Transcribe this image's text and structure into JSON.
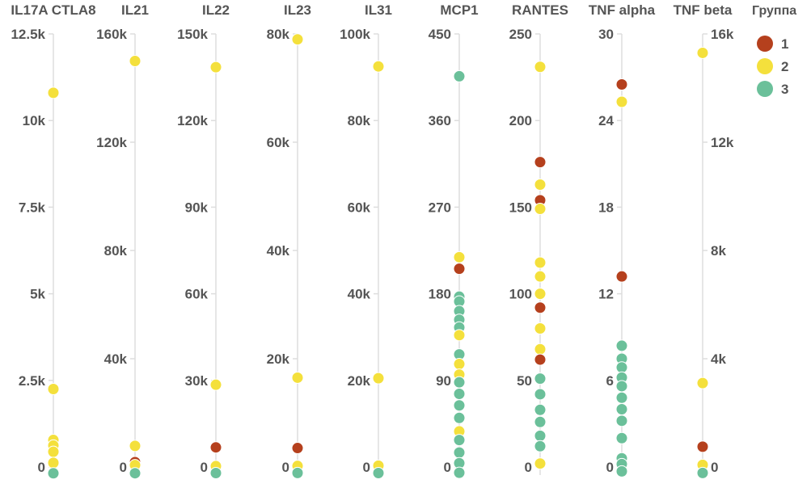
{
  "chart_data": {
    "type": "scatter",
    "subtype": "parallel-strip-plot",
    "title": "",
    "legend": {
      "title": "Группа",
      "placement": "top-right",
      "entries": [
        {
          "label": "1",
          "color": "#B5401D"
        },
        {
          "label": "2",
          "color": "#F4E03C"
        },
        {
          "label": "3",
          "color": "#6BC09A"
        }
      ]
    },
    "grid": false,
    "axes": [
      {
        "name": "IL17A CTLA8",
        "ylim": [
          0,
          12500
        ],
        "ticks": [
          {
            "v": 0,
            "label": "0"
          },
          {
            "v": 2500,
            "label": "2.5k"
          },
          {
            "v": 5000,
            "label": "5k"
          },
          {
            "v": 7500,
            "label": "7.5k"
          },
          {
            "v": 10000,
            "label": "10k"
          },
          {
            "v": 12500,
            "label": "12.5k"
          }
        ],
        "tick_side": "left",
        "points": [
          {
            "group": "2",
            "value": 10800
          },
          {
            "group": "2",
            "value": 2250
          },
          {
            "group": "2",
            "value": 780
          },
          {
            "group": "2",
            "value": 620
          },
          {
            "group": "2",
            "value": 440
          },
          {
            "group": "2",
            "value": 120
          },
          {
            "group": "3",
            "value": -180
          }
        ]
      },
      {
        "name": "IL21",
        "ylim": [
          0,
          160000
        ],
        "ticks": [
          {
            "v": 0,
            "label": "0"
          },
          {
            "v": 40000,
            "label": "40k"
          },
          {
            "v": 80000,
            "label": "80k"
          },
          {
            "v": 120000,
            "label": "120k"
          },
          {
            "v": 160000,
            "label": "160k"
          }
        ],
        "tick_side": "left",
        "points": [
          {
            "group": "2",
            "value": 150000
          },
          {
            "group": "2",
            "value": 7800
          },
          {
            "group": "1",
            "value": 1800
          },
          {
            "group": "2",
            "value": 700
          },
          {
            "group": "3",
            "value": -2300
          }
        ]
      },
      {
        "name": "IL22",
        "ylim": [
          0,
          150000
        ],
        "ticks": [
          {
            "v": 0,
            "label": "0"
          },
          {
            "v": 30000,
            "label": "30k"
          },
          {
            "v": 60000,
            "label": "60k"
          },
          {
            "v": 90000,
            "label": "90k"
          },
          {
            "v": 120000,
            "label": "120k"
          },
          {
            "v": 150000,
            "label": "150k"
          }
        ],
        "tick_side": "left",
        "points": [
          {
            "group": "2",
            "value": 138500
          },
          {
            "group": "2",
            "value": 28500
          },
          {
            "group": "1",
            "value": 6800
          },
          {
            "group": "2",
            "value": 300
          },
          {
            "group": "3",
            "value": -2100
          }
        ]
      },
      {
        "name": "IL23",
        "ylim": [
          0,
          80000
        ],
        "ticks": [
          {
            "v": 0,
            "label": "0"
          },
          {
            "v": 20000,
            "label": "20k"
          },
          {
            "v": 40000,
            "label": "40k"
          },
          {
            "v": 60000,
            "label": "60k"
          },
          {
            "v": 80000,
            "label": "80k"
          }
        ],
        "tick_side": "left",
        "points": [
          {
            "group": "2",
            "value": 79000
          },
          {
            "group": "2",
            "value": 16500
          },
          {
            "group": "1",
            "value": 3500
          },
          {
            "group": "2",
            "value": 200
          },
          {
            "group": "3",
            "value": -1100
          }
        ]
      },
      {
        "name": "IL31",
        "ylim": [
          0,
          100000
        ],
        "ticks": [
          {
            "v": 0,
            "label": "0"
          },
          {
            "v": 20000,
            "label": "20k"
          },
          {
            "v": 40000,
            "label": "40k"
          },
          {
            "v": 60000,
            "label": "60k"
          },
          {
            "v": 80000,
            "label": "80k"
          },
          {
            "v": 100000,
            "label": "100k"
          }
        ],
        "tick_side": "left",
        "points": [
          {
            "group": "2",
            "value": 92500
          },
          {
            "group": "2",
            "value": 20500
          },
          {
            "group": "2",
            "value": 300
          },
          {
            "group": "3",
            "value": -1400
          }
        ]
      },
      {
        "name": "MCP1",
        "ylim": [
          0,
          450
        ],
        "ticks": [
          {
            "v": 0,
            "label": "0"
          },
          {
            "v": 90,
            "label": "90"
          },
          {
            "v": 180,
            "label": "180"
          },
          {
            "v": 270,
            "label": "270"
          },
          {
            "v": 360,
            "label": "360"
          },
          {
            "v": 450,
            "label": "450"
          }
        ],
        "tick_side": "left",
        "points": [
          {
            "group": "3",
            "value": 406
          },
          {
            "group": "2",
            "value": 218
          },
          {
            "group": "1",
            "value": 206
          },
          {
            "group": "3",
            "value": 177
          },
          {
            "group": "3",
            "value": 172
          },
          {
            "group": "3",
            "value": 162
          },
          {
            "group": "3",
            "value": 153
          },
          {
            "group": "3",
            "value": 145
          },
          {
            "group": "2",
            "value": 137
          },
          {
            "group": "3",
            "value": 117
          },
          {
            "group": "2",
            "value": 107
          },
          {
            "group": "2",
            "value": 96
          },
          {
            "group": "3",
            "value": 88
          },
          {
            "group": "3",
            "value": 76
          },
          {
            "group": "3",
            "value": 64
          },
          {
            "group": "3",
            "value": 51
          },
          {
            "group": "2",
            "value": 37
          },
          {
            "group": "3",
            "value": 28
          },
          {
            "group": "3",
            "value": 15
          },
          {
            "group": "3",
            "value": 4
          },
          {
            "group": "3",
            "value": -6
          }
        ]
      },
      {
        "name": "RANTES",
        "ylim": [
          0,
          250
        ],
        "ticks": [
          {
            "v": 0,
            "label": "0"
          },
          {
            "v": 50,
            "label": "50"
          },
          {
            "v": 100,
            "label": "100"
          },
          {
            "v": 150,
            "label": "150"
          },
          {
            "v": 200,
            "label": "200"
          },
          {
            "v": 250,
            "label": "250"
          }
        ],
        "tick_side": "left",
        "points": [
          {
            "group": "2",
            "value": 231
          },
          {
            "group": "1",
            "value": 176
          },
          {
            "group": "2",
            "value": 163
          },
          {
            "group": "1",
            "value": 154
          },
          {
            "group": "2",
            "value": 149
          },
          {
            "group": "2",
            "value": 118
          },
          {
            "group": "2",
            "value": 110
          },
          {
            "group": "2",
            "value": 100
          },
          {
            "group": "1",
            "value": 92
          },
          {
            "group": "2",
            "value": 80
          },
          {
            "group": "2",
            "value": 68
          },
          {
            "group": "1",
            "value": 62
          },
          {
            "group": "3",
            "value": 51
          },
          {
            "group": "3",
            "value": 42
          },
          {
            "group": "3",
            "value": 33
          },
          {
            "group": "3",
            "value": 26
          },
          {
            "group": "3",
            "value": 18
          },
          {
            "group": "3",
            "value": 12
          },
          {
            "group": "2",
            "value": 2
          }
        ]
      },
      {
        "name": "TNF alpha",
        "ylim": [
          0,
          30
        ],
        "ticks": [
          {
            "v": 0,
            "label": "0"
          },
          {
            "v": 6,
            "label": "6"
          },
          {
            "v": 12,
            "label": "12"
          },
          {
            "v": 18,
            "label": "18"
          },
          {
            "v": 24,
            "label": "24"
          },
          {
            "v": 30,
            "label": "30"
          }
        ],
        "tick_side": "left",
        "points": [
          {
            "group": "1",
            "value": 26.5
          },
          {
            "group": "2",
            "value": 25.3
          },
          {
            "group": "1",
            "value": 13.2
          },
          {
            "group": "3",
            "value": 8.4
          },
          {
            "group": "3",
            "value": 7.5
          },
          {
            "group": "3",
            "value": 6.9
          },
          {
            "group": "3",
            "value": 6.2
          },
          {
            "group": "3",
            "value": 5.6
          },
          {
            "group": "3",
            "value": 4.8
          },
          {
            "group": "3",
            "value": 4.0
          },
          {
            "group": "3",
            "value": 3.2
          },
          {
            "group": "3",
            "value": 2.0
          },
          {
            "group": "3",
            "value": 0.6
          },
          {
            "group": "3",
            "value": 0.2
          },
          {
            "group": "3",
            "value": -0.3
          }
        ]
      },
      {
        "name": "TNF beta",
        "ylim": [
          0,
          16000
        ],
        "ticks": [
          {
            "v": 0,
            "label": "0"
          },
          {
            "v": 4000,
            "label": "4k"
          },
          {
            "v": 8000,
            "label": "8k"
          },
          {
            "v": 12000,
            "label": "12k"
          },
          {
            "v": 16000,
            "label": "16k"
          }
        ],
        "tick_side": "right",
        "points": [
          {
            "group": "2",
            "value": 15300
          },
          {
            "group": "2",
            "value": 3100
          },
          {
            "group": "1",
            "value": 750
          },
          {
            "group": "2",
            "value": 80
          },
          {
            "group": "3",
            "value": -220
          }
        ]
      }
    ]
  }
}
